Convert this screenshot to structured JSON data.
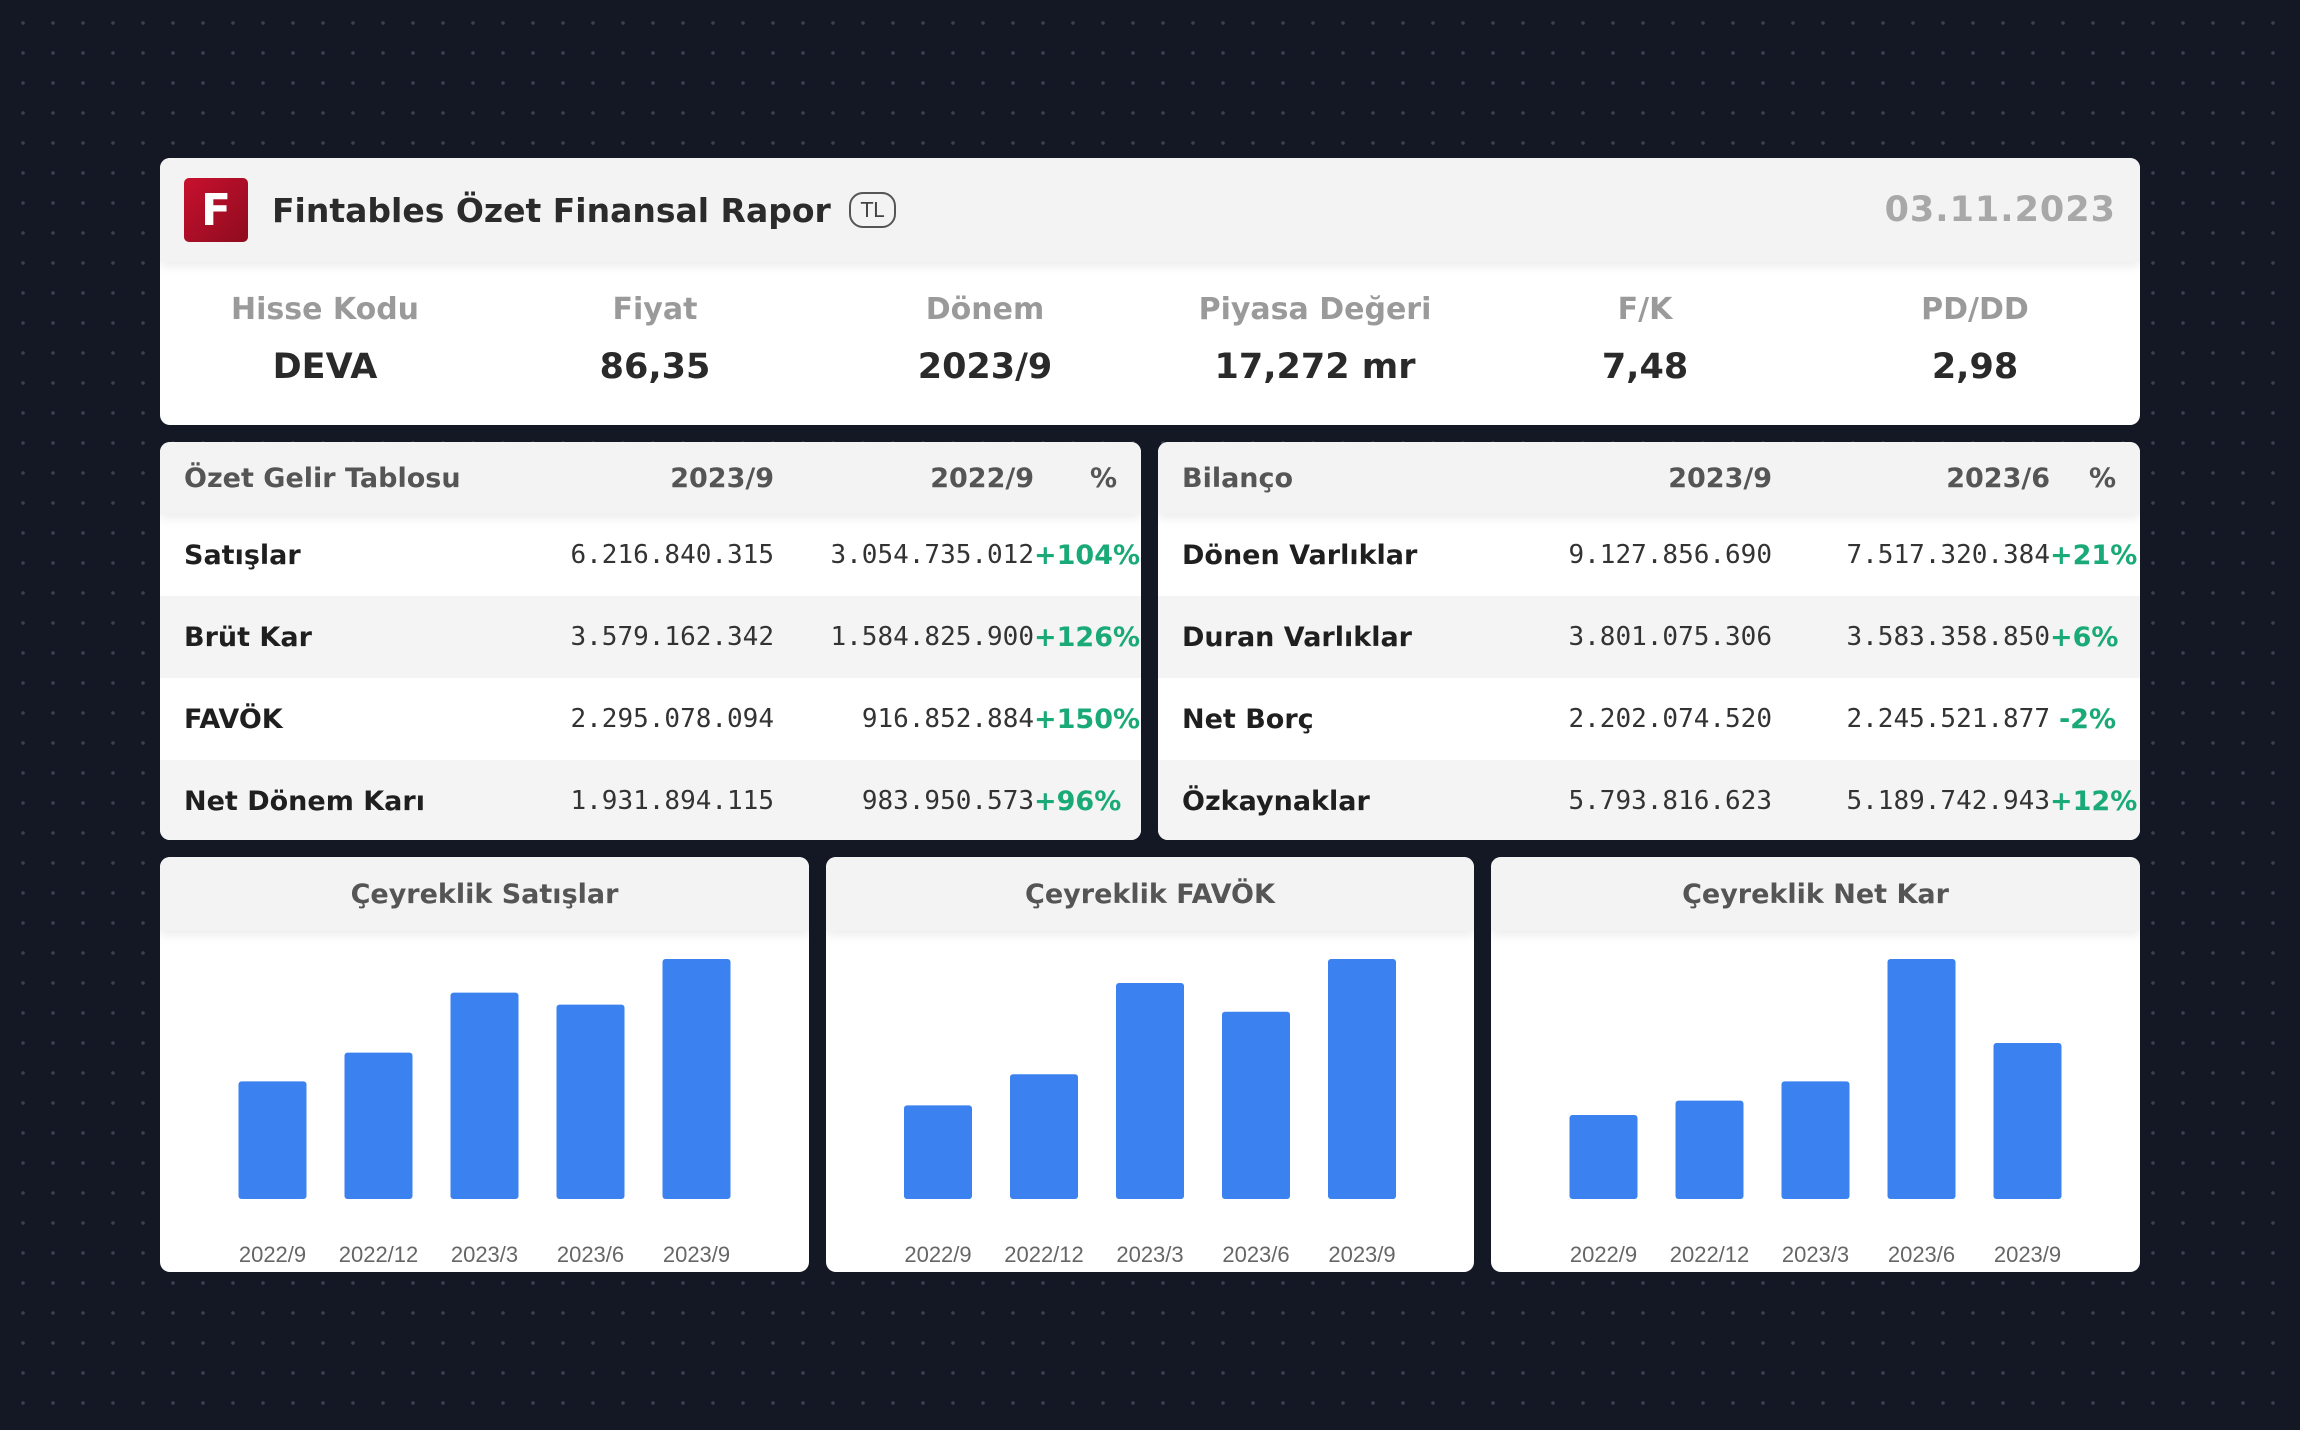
{
  "header": {
    "logo_letter": "F",
    "title": "Fintables Özet Finansal Rapor",
    "currency": "TL",
    "date": "03.11.2023",
    "brand_color": "#c8102e"
  },
  "stats": [
    {
      "label": "Hisse Kodu",
      "value": "DEVA"
    },
    {
      "label": "Fiyat",
      "value": "86,35"
    },
    {
      "label": "Dönem",
      "value": "2023/9"
    },
    {
      "label": "Piyasa Değeri",
      "value": "17,272 mr"
    },
    {
      "label": "F/K",
      "value": "7,48"
    },
    {
      "label": "PD/DD",
      "value": "2,98"
    }
  ],
  "income": {
    "headers": [
      "Özet Gelir Tablosu",
      "2023/9",
      "2022/9",
      "%"
    ],
    "rows": [
      {
        "name": "Satışlar",
        "v1": "6.216.840.315",
        "v2": "3.054.735.012",
        "pct": "+104%"
      },
      {
        "name": "Brüt Kar",
        "v1": "3.579.162.342",
        "v2": "1.584.825.900",
        "pct": "+126%"
      },
      {
        "name": "FAVÖK",
        "v1": "2.295.078.094",
        "v2": "916.852.884",
        "pct": "+150%"
      },
      {
        "name": "Net Dönem Karı",
        "v1": "1.931.894.115",
        "v2": "983.950.573",
        "pct": "+96%"
      }
    ]
  },
  "balance": {
    "headers": [
      "Bilanço",
      "2023/9",
      "2023/6",
      "%"
    ],
    "rows": [
      {
        "name": "Dönen Varlıklar",
        "v1": "9.127.856.690",
        "v2": "7.517.320.384",
        "pct": "+21%"
      },
      {
        "name": "Duran Varlıklar",
        "v1": "3.801.075.306",
        "v2": "3.583.358.850",
        "pct": "+6%"
      },
      {
        "name": "Net Borç",
        "v1": "2.202.074.520",
        "v2": "2.245.521.877",
        "pct": "-2%"
      },
      {
        "name": "Özkaynaklar",
        "v1": "5.793.816.623",
        "v2": "5.189.742.943",
        "pct": "+12%"
      }
    ]
  },
  "chart_data": [
    {
      "type": "bar",
      "title": "Çeyreklik Satışlar",
      "categories": [
        "2022/9",
        "2022/12",
        "2023/3",
        "2023/6",
        "2023/9"
      ],
      "values": [
        49,
        61,
        86,
        81,
        100
      ],
      "ylim": [
        0,
        100
      ],
      "grid": false,
      "bar_color": "#3b82f0"
    },
    {
      "type": "bar",
      "title": "Çeyreklik FAVÖK",
      "categories": [
        "2022/9",
        "2022/12",
        "2023/3",
        "2023/6",
        "2023/9"
      ],
      "values": [
        39,
        52,
        90,
        78,
        100
      ],
      "ylim": [
        0,
        100
      ],
      "grid": false,
      "bar_color": "#3b82f0"
    },
    {
      "type": "bar",
      "title": "Çeyreklik Net Kar",
      "categories": [
        "2022/9",
        "2022/12",
        "2023/3",
        "2023/6",
        "2023/9"
      ],
      "values": [
        35,
        41,
        49,
        100,
        65
      ],
      "ylim": [
        0,
        100
      ],
      "grid": false,
      "bar_color": "#3b82f0"
    }
  ]
}
